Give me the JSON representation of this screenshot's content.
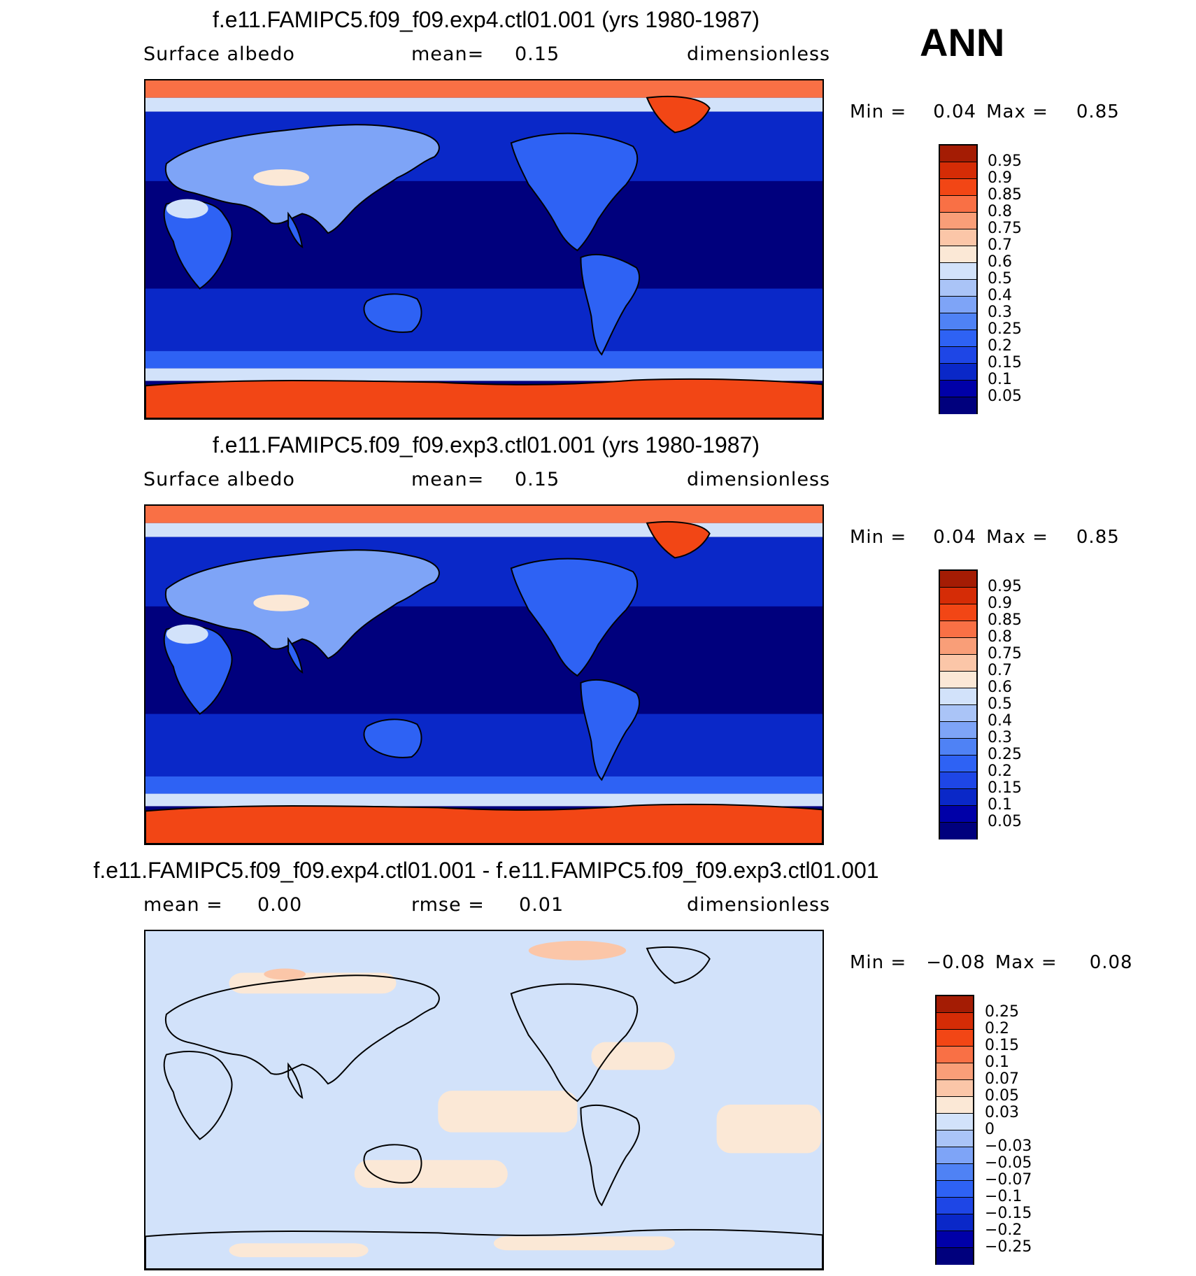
{
  "season": "ANN",
  "chart_data": [
    {
      "type": "heatmap",
      "title": "f.e11.FAMIPC5.f09_f09.exp4.ctl01.001 (yrs 1980-1987)",
      "subtitle_left": "Surface  albedo",
      "subtitle_mid": "mean=",
      "subtitle_mid_value": "0.15",
      "subtitle_right": "dimensionless",
      "min_label": "Min  =",
      "min": "0.04",
      "max_label": "Max  =",
      "max": "0.85",
      "colorbar": {
        "levels": [
          "0.05",
          "0.1",
          "0.15",
          "0.2",
          "0.25",
          "0.3",
          "0.4",
          "0.5",
          "0.6",
          "0.7",
          "0.75",
          "0.8",
          "0.85",
          "0.9",
          "0.95"
        ],
        "colors": [
          "#00007d",
          "#0000a8",
          "#0a28c8",
          "#1e46e6",
          "#2e62f4",
          "#4f82f5",
          "#7ea4f7",
          "#aac4f7",
          "#d2e2fa",
          "#fbe8d6",
          "#fbc6a8",
          "#f99e78",
          "#f97045",
          "#f24615",
          "#d52c06",
          "#a41c04"
        ]
      },
      "field_pattern": "albedo"
    },
    {
      "type": "heatmap",
      "title": "f.e11.FAMIPC5.f09_f09.exp3.ctl01.001 (yrs 1980-1987)",
      "subtitle_left": "Surface  albedo",
      "subtitle_mid": "mean=",
      "subtitle_mid_value": "0.15",
      "subtitle_right": "dimensionless",
      "min_label": "Min  =",
      "min": "0.04",
      "max_label": "Max  =",
      "max": "0.85",
      "colorbar": {
        "levels": [
          "0.05",
          "0.1",
          "0.15",
          "0.2",
          "0.25",
          "0.3",
          "0.4",
          "0.5",
          "0.6",
          "0.7",
          "0.75",
          "0.8",
          "0.85",
          "0.9",
          "0.95"
        ],
        "colors": [
          "#00007d",
          "#0000a8",
          "#0a28c8",
          "#1e46e6",
          "#2e62f4",
          "#4f82f5",
          "#7ea4f7",
          "#aac4f7",
          "#d2e2fa",
          "#fbe8d6",
          "#fbc6a8",
          "#f99e78",
          "#f97045",
          "#f24615",
          "#d52c06",
          "#a41c04"
        ]
      },
      "field_pattern": "albedo"
    },
    {
      "type": "heatmap",
      "title": "f.e11.FAMIPC5.f09_f09.exp4.ctl01.001 - f.e11.FAMIPC5.f09_f09.exp3.ctl01.001",
      "subtitle_left": "mean  =",
      "subtitle_left_value": "0.00",
      "subtitle_mid": "rmse  =",
      "subtitle_mid_value": "0.01",
      "subtitle_right": "dimensionless",
      "min_label": "Min  =",
      "min": "−0.08",
      "max_label": "Max  =",
      "max": "0.08",
      "colorbar": {
        "levels": [
          "−0.25",
          "−0.2",
          "−0.15",
          "−0.1",
          "−0.07",
          "−0.05",
          "−0.03",
          "0",
          "0.03",
          "0.05",
          "0.07",
          "0.1",
          "0.15",
          "0.2",
          "0.25"
        ],
        "colors": [
          "#00007d",
          "#0000a8",
          "#0a28c8",
          "#1e46e6",
          "#2e62f4",
          "#4f82f5",
          "#7ea4f7",
          "#aac4f7",
          "#d2e2fa",
          "#fbe8d6",
          "#fbc6a8",
          "#f99e78",
          "#f97045",
          "#f24615",
          "#d52c06",
          "#a41c04"
        ]
      },
      "field_pattern": "difference"
    }
  ]
}
